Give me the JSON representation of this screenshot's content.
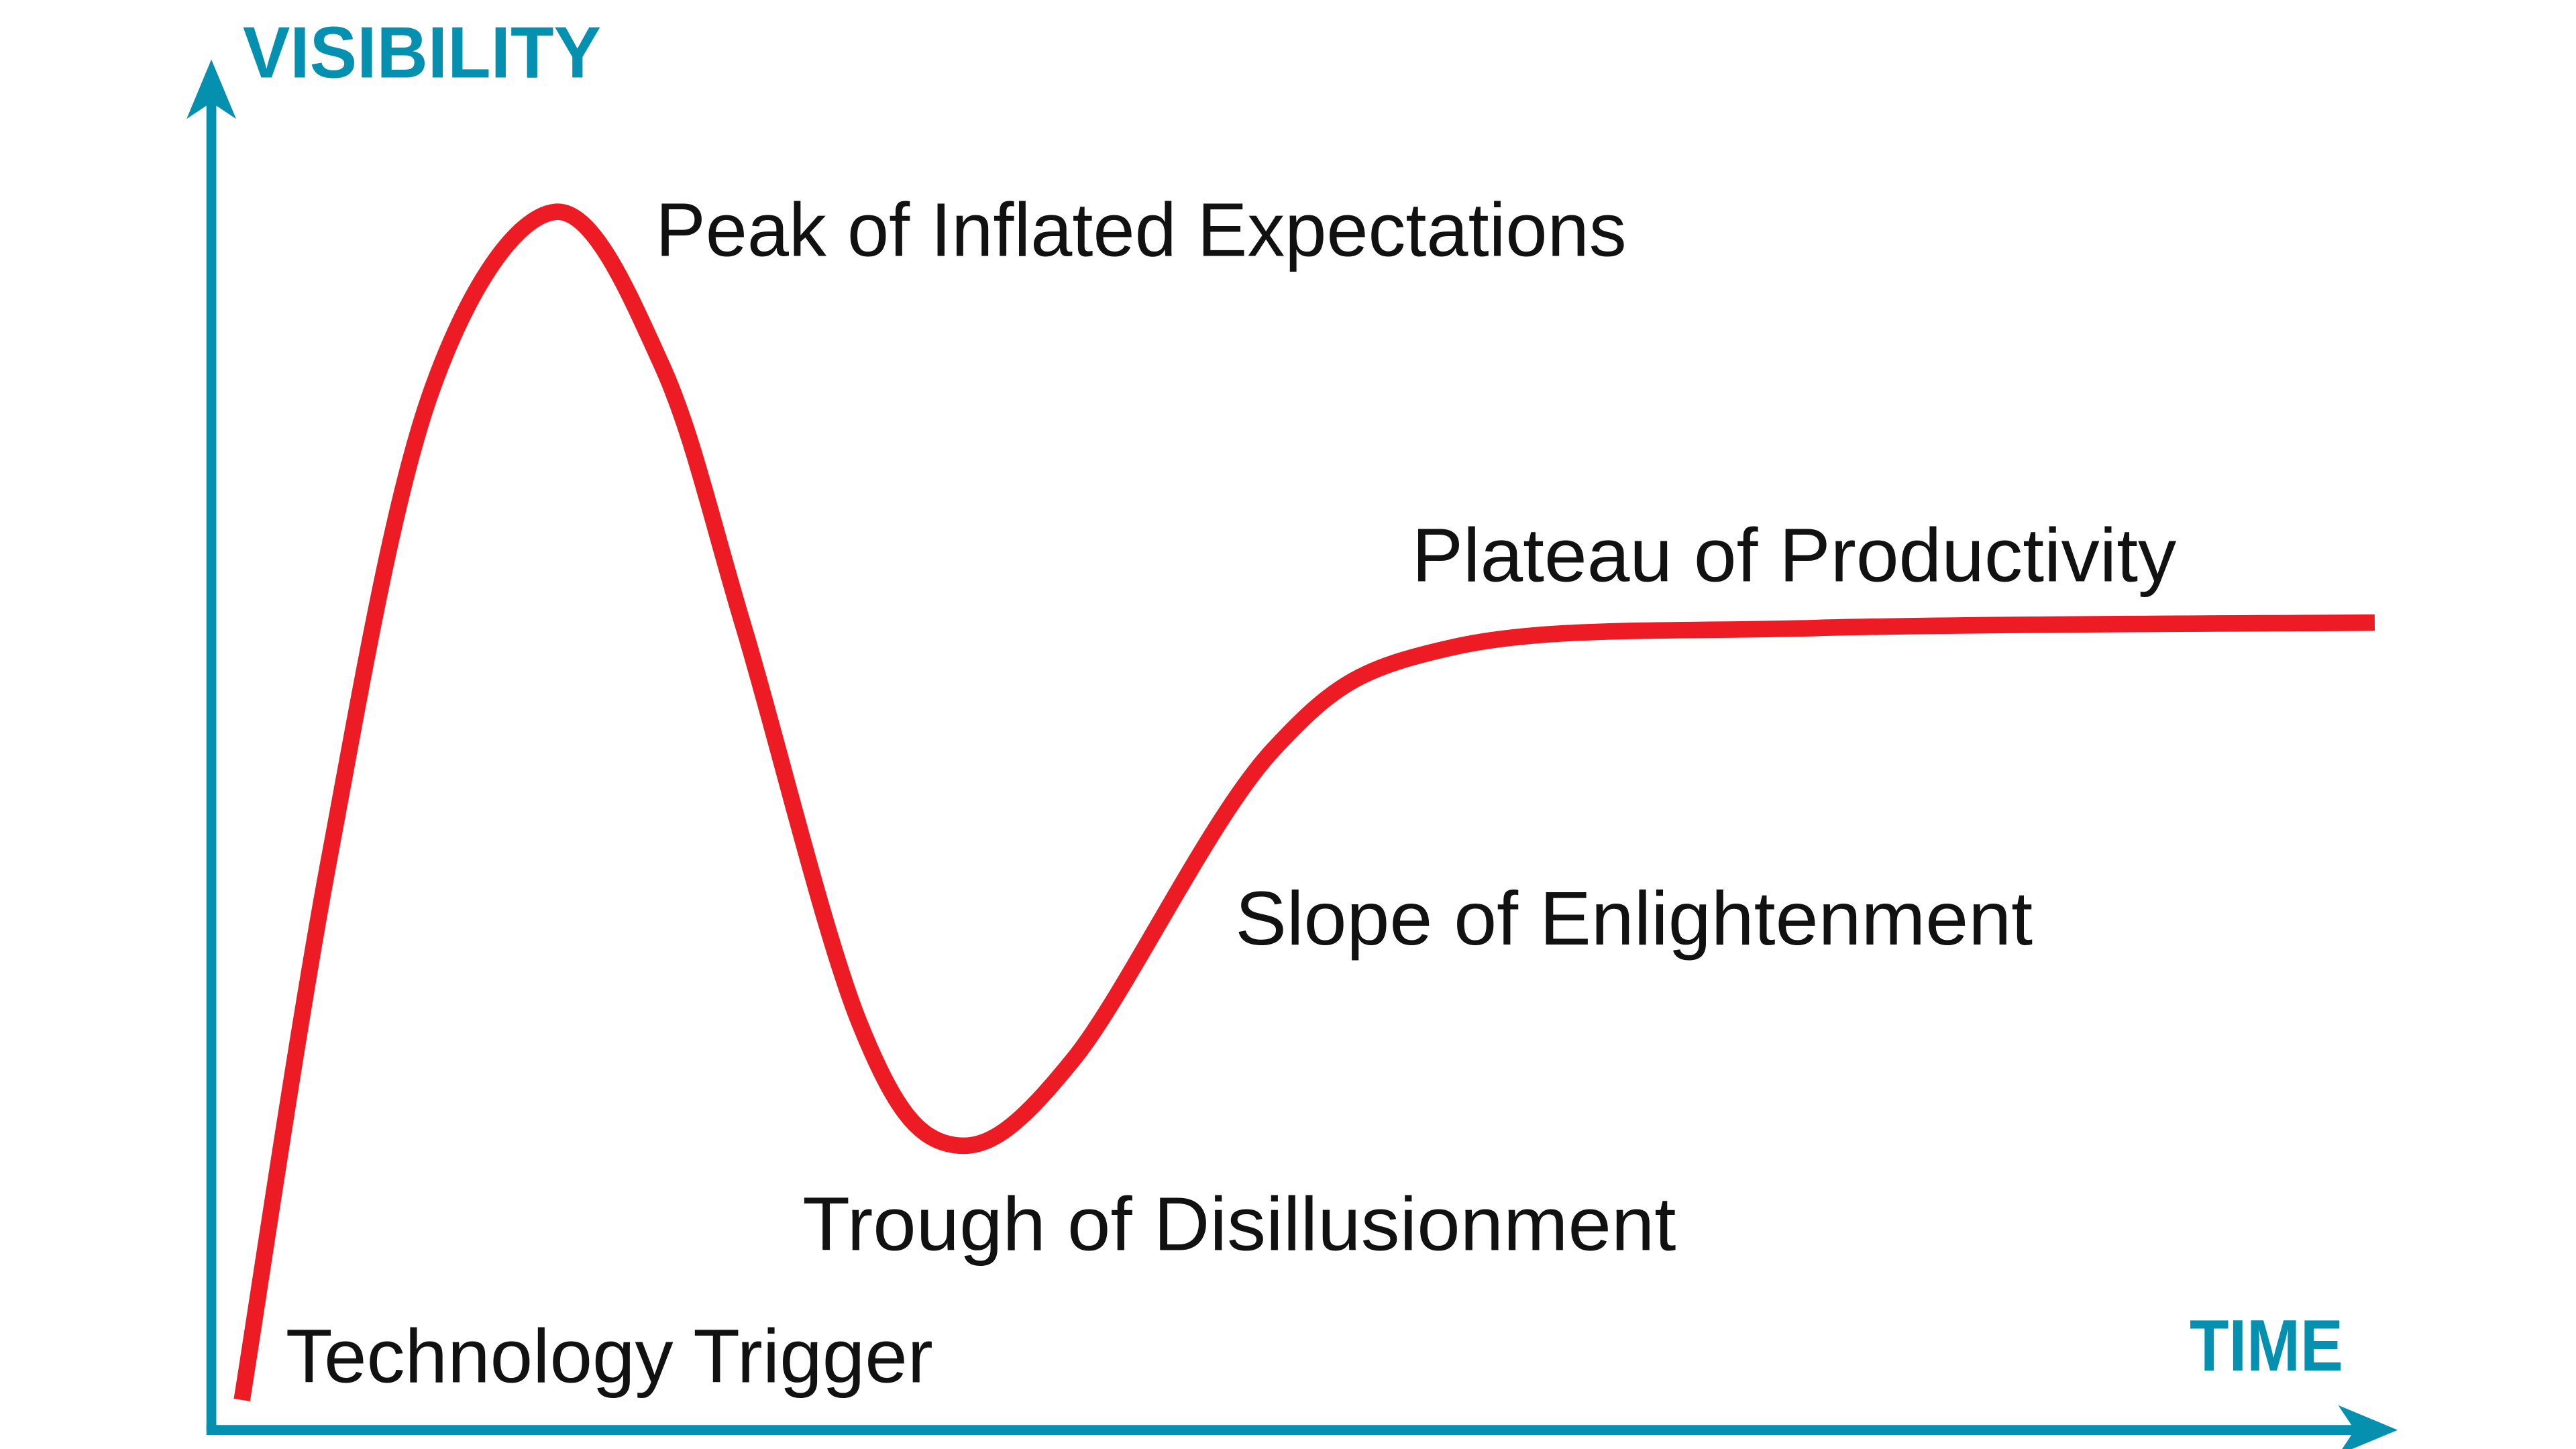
{
  "chart_data": {
    "type": "line",
    "xlabel": "TIME",
    "ylabel": "VISIBILITY",
    "xlim": [
      0,
      100
    ],
    "ylim": [
      0,
      100
    ],
    "grid": false,
    "series": [
      {
        "x": [
          1.4,
          5.4,
          10,
          15.7,
          20.6,
          24.4,
          29.7,
          34,
          39.5,
          48.6,
          56.9,
          73.5,
          99.1
        ],
        "y": [
          2.2,
          41.9,
          75.8,
          89.3,
          78.2,
          58.8,
          29.8,
          20.9,
          27.2,
          49.8,
          57.4,
          58.8,
          59.2
        ]
      }
    ],
    "annotations": [
      {
        "text": "Technology Trigger"
      },
      {
        "text": "Peak of Inflated Expectations"
      },
      {
        "text": "Trough of Disillusionment"
      },
      {
        "text": "Slope of Enlightenment"
      },
      {
        "text": "Plateau of Productivity"
      }
    ]
  },
  "colors": {
    "axis": "#0590b0",
    "curve": "#ed1c24",
    "text": "#111111"
  }
}
